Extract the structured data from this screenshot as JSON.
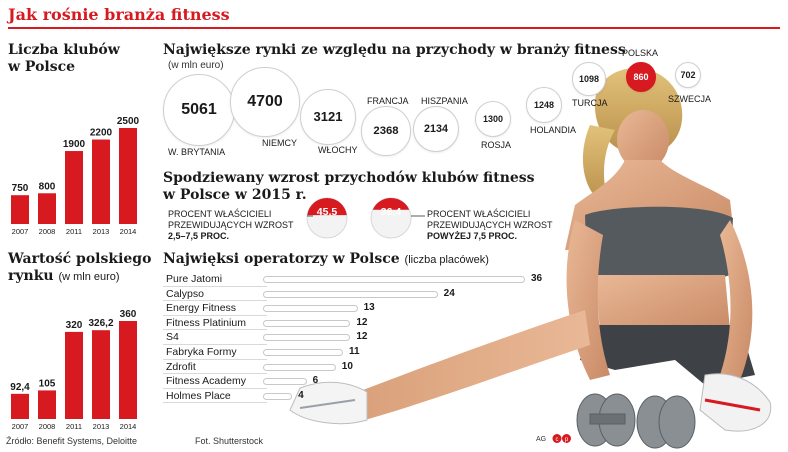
{
  "title": "Jak rośnie branża fitness",
  "clubs": {
    "heading_line1": "Liczba klubów",
    "heading_line2": "w Polsce"
  },
  "market_value": {
    "heading_line1": "Wartość polskiego",
    "heading_line2": "rynku",
    "unit": "(w mln euro)"
  },
  "markets": {
    "heading": "Największe rynki ze względu na przychody w branży fitness",
    "unit": "(w mln euro)"
  },
  "growth": {
    "heading_line1": "Spodziewany wzrost przychodów klubów fitness",
    "heading_line2": "w Polsce w 2015 r.",
    "left_line1": "PROCENT WŁAŚCICIELI",
    "left_line2": "PRZEWIDUJĄCYCH WZROST",
    "left_line3": "2,5–7,5 PROC.",
    "right_line1": "PROCENT WŁAŚCICIELI",
    "right_line2": "PRZEWIDUJĄCYCH WZROST",
    "right_line3": "POWYŻEJ 7,5 PROC."
  },
  "operators": {
    "heading": "Najwięksi operatorzy w Polsce",
    "unit": "(liczba placówek)"
  },
  "footer": {
    "source": "Źródło: Benefit Systems, Deloitte",
    "photo": "Fot. Shutterstock",
    "ag": "AG"
  },
  "colors": {
    "accent_red": "#d71920",
    "bar_grey": "#cfcfcf",
    "text_dark": "#1a1a1a"
  },
  "chart_data": [
    {
      "id": "clubs",
      "type": "bar",
      "categories": [
        "2007",
        "2008",
        "2011",
        "2013",
        "2014"
      ],
      "values": [
        750,
        800,
        1900,
        2200,
        2500
      ],
      "value_labels": [
        "750",
        "800",
        "1900",
        "2200",
        "2500"
      ],
      "title": "Liczba klubów w Polsce",
      "ylim": [
        0,
        2500
      ]
    },
    {
      "id": "market_value",
      "type": "bar",
      "categories": [
        "2007",
        "2008",
        "2011",
        "2013",
        "2014"
      ],
      "values": [
        92.4,
        105,
        320,
        326.2,
        360
      ],
      "value_labels": [
        "92,4",
        "105",
        "320",
        "326,2",
        "360"
      ],
      "title": "Wartość polskiego rynku (w mln euro)",
      "ylim": [
        0,
        360
      ]
    },
    {
      "id": "markets",
      "type": "scatter",
      "categories": [
        "W. BRYTANIA",
        "NIEMCY",
        "WŁOCHY",
        "FRANCJA",
        "HISZPANIA",
        "ROSJA",
        "HOLANDIA",
        "TURCJA",
        "POLSKA",
        "SZWECJA"
      ],
      "values": [
        5061,
        4700,
        3121,
        2368,
        2134,
        1300,
        1248,
        1098,
        860,
        702
      ],
      "highlight": "POLSKA",
      "title": "Największe rynki ze względu na przychody w branży fitness (w mln euro)"
    },
    {
      "id": "growth",
      "type": "pie",
      "categories": [
        "2,5–7,5 PROC.",
        "POWYŻEJ 7,5 PROC."
      ],
      "values": [
        45.5,
        36.4
      ],
      "value_labels": [
        "45,5",
        "36,4"
      ],
      "title": "Spodziewany wzrost przychodów klubów fitness w Polsce w 2015 r."
    },
    {
      "id": "operators",
      "type": "bar",
      "orientation": "horizontal",
      "categories": [
        "Pure Jatomi",
        "Calypso",
        "Energy Fitness",
        "Fitness Platinium",
        "S4",
        "Fabryka Formy",
        "Zdrofit",
        "Fitness Academy",
        "Holmes Place"
      ],
      "values": [
        36,
        24,
        13,
        12,
        12,
        11,
        10,
        6,
        4
      ],
      "title": "Najwięksi operatorzy w Polsce (liczba placówek)",
      "xlim": [
        0,
        36
      ]
    }
  ]
}
